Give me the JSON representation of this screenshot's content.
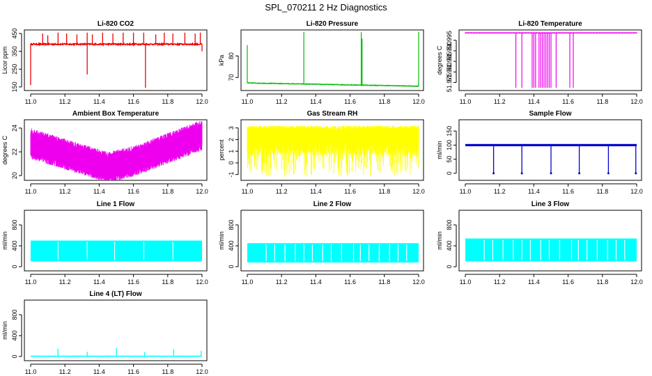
{
  "figure_title": "SPL_070211  2 Hz Diagnostics",
  "chart_data": [
    {
      "type": "line",
      "id": "co2",
      "title": "Li-820 CO2",
      "xlabel": "",
      "ylabel": "Licor ppm",
      "color": "#ee0000",
      "xlim": [
        11.0,
        12.0
      ],
      "ylim": [
        130,
        470
      ],
      "xticks": [
        "11.0",
        "11.2",
        "11.4",
        "11.6",
        "11.8",
        "12.0"
      ],
      "yticks": [
        150,
        250,
        350,
        450
      ],
      "series": [
        {
          "name": "CO2",
          "base": 390,
          "noise": 4,
          "spikes": [
            {
              "x": 11.0,
              "v": 160
            },
            {
              "x": 11.07,
              "v": 450
            },
            {
              "x": 11.1,
              "v": 440
            },
            {
              "x": 11.16,
              "v": 455
            },
            {
              "x": 11.21,
              "v": 450
            },
            {
              "x": 11.27,
              "v": 445
            },
            {
              "x": 11.33,
              "v": 455
            },
            {
              "x": 11.33,
              "v": 220
            },
            {
              "x": 11.36,
              "v": 445
            },
            {
              "x": 11.42,
              "v": 455
            },
            {
              "x": 11.48,
              "v": 450
            },
            {
              "x": 11.54,
              "v": 455
            },
            {
              "x": 11.6,
              "v": 455
            },
            {
              "x": 11.66,
              "v": 455
            },
            {
              "x": 11.67,
              "v": 145
            },
            {
              "x": 11.73,
              "v": 445
            },
            {
              "x": 11.78,
              "v": 455
            },
            {
              "x": 11.83,
              "v": 450
            },
            {
              "x": 11.9,
              "v": 455
            },
            {
              "x": 11.96,
              "v": 450
            },
            {
              "x": 11.99,
              "v": 455
            },
            {
              "x": 12.0,
              "v": 350
            }
          ]
        }
      ]
    },
    {
      "type": "line",
      "id": "pressure",
      "title": "Li-820 Pressure",
      "xlabel": "",
      "ylabel": "kPa",
      "color": "#00bb00",
      "xlim": [
        11.0,
        12.0
      ],
      "ylim": [
        64,
        92
      ],
      "xticks": [
        "11.0",
        "11.2",
        "11.4",
        "11.6",
        "11.8",
        "12.0"
      ],
      "yticks": [
        70,
        80
      ],
      "series": [
        {
          "name": "Pressure",
          "start": 67.5,
          "end": 66.0,
          "noise": 0.15,
          "spikes": [
            {
              "x": 11.0,
              "v": 85
            },
            {
              "x": 11.33,
              "v": 91
            },
            {
              "x": 11.665,
              "v": 91
            },
            {
              "x": 11.67,
              "v": 88
            },
            {
              "x": 12.0,
              "v": 91
            }
          ]
        }
      ]
    },
    {
      "type": "line",
      "id": "temperature",
      "title": "Li-820 Temperature",
      "xlabel": "",
      "ylabel": "degrees C",
      "color": "#ee00ee",
      "xlim": [
        11.0,
        12.0
      ],
      "ylim": [
        51.9712,
        51.9999
      ],
      "xticks": [
        "11.0",
        "11.2",
        "11.4",
        "11.6",
        "11.8",
        "12.0"
      ],
      "yticks": [
        51.975,
        51.98,
        51.985,
        51.99,
        51.995
      ],
      "ytick_labels": [
        "51.975",
        "51.980",
        "51.985",
        "51.990",
        "51.995"
      ],
      "series": [
        {
          "name": "Temperature",
          "base": 51.9985,
          "drops": [
            11.295,
            11.33,
            11.39,
            11.4,
            11.41,
            11.43,
            11.44,
            11.45,
            11.46,
            11.47,
            11.48,
            11.49,
            11.5,
            11.53,
            11.61,
            11.63
          ],
          "drop_to": 51.9725
        }
      ]
    },
    {
      "type": "line",
      "id": "ambient",
      "title": "Ambient Box Temperature",
      "xlabel": "",
      "ylabel": "degrees C",
      "color": "#ee00ee",
      "xlim": [
        11.0,
        12.0
      ],
      "ylim": [
        19.6,
        24.7
      ],
      "xticks": [
        "11.0",
        "11.2",
        "11.4",
        "11.6",
        "11.8",
        "12.0"
      ],
      "yticks": [
        20,
        22,
        24
      ],
      "series": [
        {
          "name": "Ambient",
          "trend": [
            [
              11.0,
              22.7
            ],
            [
              11.45,
              20.7
            ],
            [
              11.6,
              21.2
            ],
            [
              12.0,
              23.4
            ]
          ],
          "band": 1.3
        }
      ]
    },
    {
      "type": "line",
      "id": "rh",
      "title": "Gas Stream RH",
      "xlabel": "",
      "ylabel": "percent",
      "color": "#ffff00",
      "xlim": [
        11.0,
        12.0
      ],
      "ylim": [
        -1.5,
        3.7
      ],
      "xticks": [
        "11.0",
        "11.2",
        "11.4",
        "11.6",
        "11.8",
        "12.0"
      ],
      "yticks": [
        -1,
        0,
        1,
        2,
        3
      ],
      "series": [
        {
          "name": "RH",
          "base": 2.0,
          "upper": 3.2,
          "lower": -1.2
        }
      ]
    },
    {
      "type": "line",
      "id": "sample",
      "title": "Sample Flow",
      "xlabel": "",
      "ylabel": "ml/min",
      "color": "#0000cc",
      "xlim": [
        11.0,
        12.0
      ],
      "ylim": [
        -25,
        190
      ],
      "xticks": [
        "11.0",
        "11.2",
        "11.4",
        "11.6",
        "11.8",
        "12.0"
      ],
      "yticks": [
        0,
        50,
        100,
        150
      ],
      "series": [
        {
          "name": "Sample",
          "base": 100,
          "noise": 4,
          "dips": [
            11.165,
            11.33,
            11.5,
            11.665,
            11.835,
            11.995
          ],
          "dip_to": 0
        }
      ]
    },
    {
      "type": "area",
      "id": "line1",
      "title": "Line 1 Flow",
      "xlabel": "",
      "ylabel": "ml/min",
      "color": "#00ffff",
      "xlim": [
        11.0,
        12.0
      ],
      "ylim": [
        -80,
        1080
      ],
      "xticks": [
        "11.0",
        "11.2",
        "11.4",
        "11.6",
        "11.8",
        "12.0"
      ],
      "yticks": [
        0,
        400,
        800
      ],
      "series": [
        {
          "name": "Line 1",
          "top": 500,
          "bottom": 100,
          "gaps": [
            11.16,
            11.33,
            11.49,
            11.66,
            11.83
          ]
        }
      ]
    },
    {
      "type": "area",
      "id": "line2",
      "title": "Line 2 Flow",
      "xlabel": "",
      "ylabel": "ml/min",
      "color": "#00ffff",
      "xlim": [
        11.0,
        12.0
      ],
      "ylim": [
        -80,
        1080
      ],
      "xticks": [
        "11.0",
        "11.2",
        "11.4",
        "11.6",
        "11.8",
        "12.0"
      ],
      "yticks": [
        0,
        400,
        800
      ],
      "series": [
        {
          "name": "Line 2",
          "top": 450,
          "bottom": 80,
          "gaps": [
            11.11,
            11.16,
            11.22,
            11.28,
            11.33,
            11.38,
            11.44,
            11.49,
            11.55,
            11.62,
            11.66,
            11.71,
            11.77,
            11.83,
            11.88,
            11.93
          ]
        }
      ]
    },
    {
      "type": "area",
      "id": "line3",
      "title": "Line 3 Flow",
      "xlabel": "",
      "ylabel": "ml/min",
      "color": "#00ffff",
      "xlim": [
        11.0,
        12.0
      ],
      "ylim": [
        -80,
        1080
      ],
      "xticks": [
        "11.0",
        "11.2",
        "11.4",
        "11.6",
        "11.8",
        "12.0"
      ],
      "yticks": [
        0,
        400,
        800
      ],
      "series": [
        {
          "name": "Line 3",
          "top": 540,
          "bottom": 100,
          "gaps": [
            11.11,
            11.16,
            11.22,
            11.28,
            11.33,
            11.38,
            11.44,
            11.49,
            11.55,
            11.62,
            11.66,
            11.71,
            11.77,
            11.83,
            11.88,
            11.93
          ]
        }
      ]
    },
    {
      "type": "line",
      "id": "line4",
      "title": "Line 4 (LT) Flow",
      "xlabel": "",
      "ylabel": "ml/min",
      "color": "#00ffff",
      "xlim": [
        11.0,
        12.0
      ],
      "ylim": [
        -80,
        1080
      ],
      "xticks": [
        "11.0",
        "11.2",
        "11.4",
        "11.6",
        "11.8",
        "12.0"
      ],
      "yticks": [
        0,
        400,
        800
      ],
      "series": [
        {
          "name": "Line 4",
          "base": 5,
          "noise": 2,
          "spikes": [
            {
              "x": 11.16,
              "v": 150
            },
            {
              "x": 11.33,
              "v": 90
            },
            {
              "x": 11.5,
              "v": 160
            },
            {
              "x": 11.665,
              "v": 85
            },
            {
              "x": 11.835,
              "v": 140
            },
            {
              "x": 11.995,
              "v": 110
            }
          ]
        }
      ]
    }
  ]
}
